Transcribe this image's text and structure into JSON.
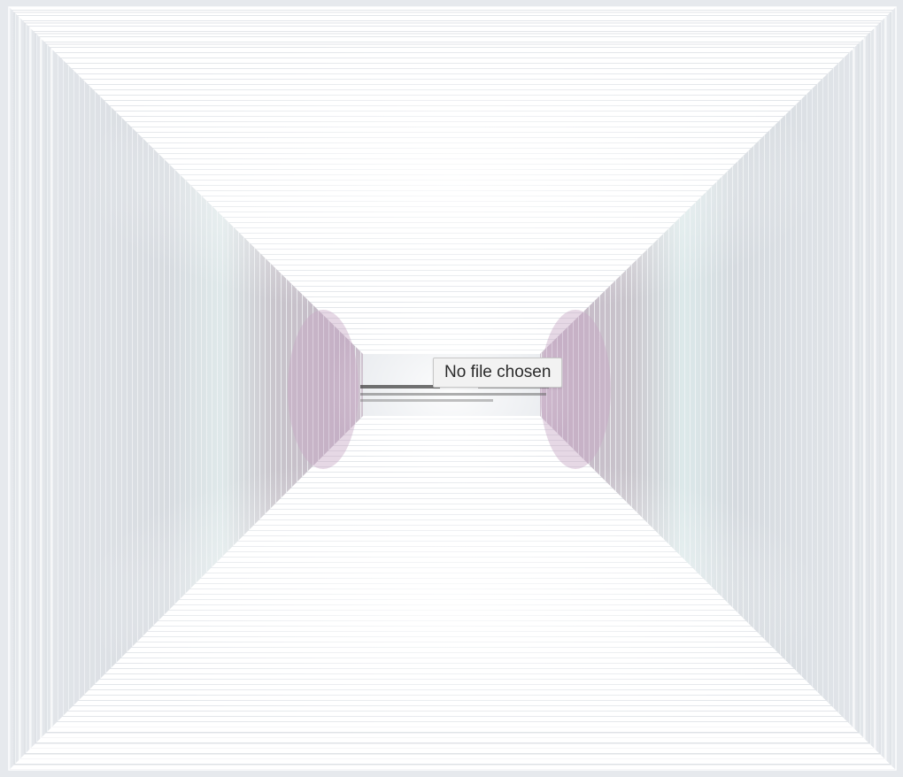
{
  "file_input": {
    "status_text": "No file chosen"
  },
  "colors": {
    "frame": "#e4e8ec",
    "side_shadow": "#c8c6cc",
    "mauve_tint": "#cdb6cc",
    "teal_tint": "#d7e8ea",
    "floor_ceiling": "#ffffff",
    "smudge_text": "#555555"
  }
}
